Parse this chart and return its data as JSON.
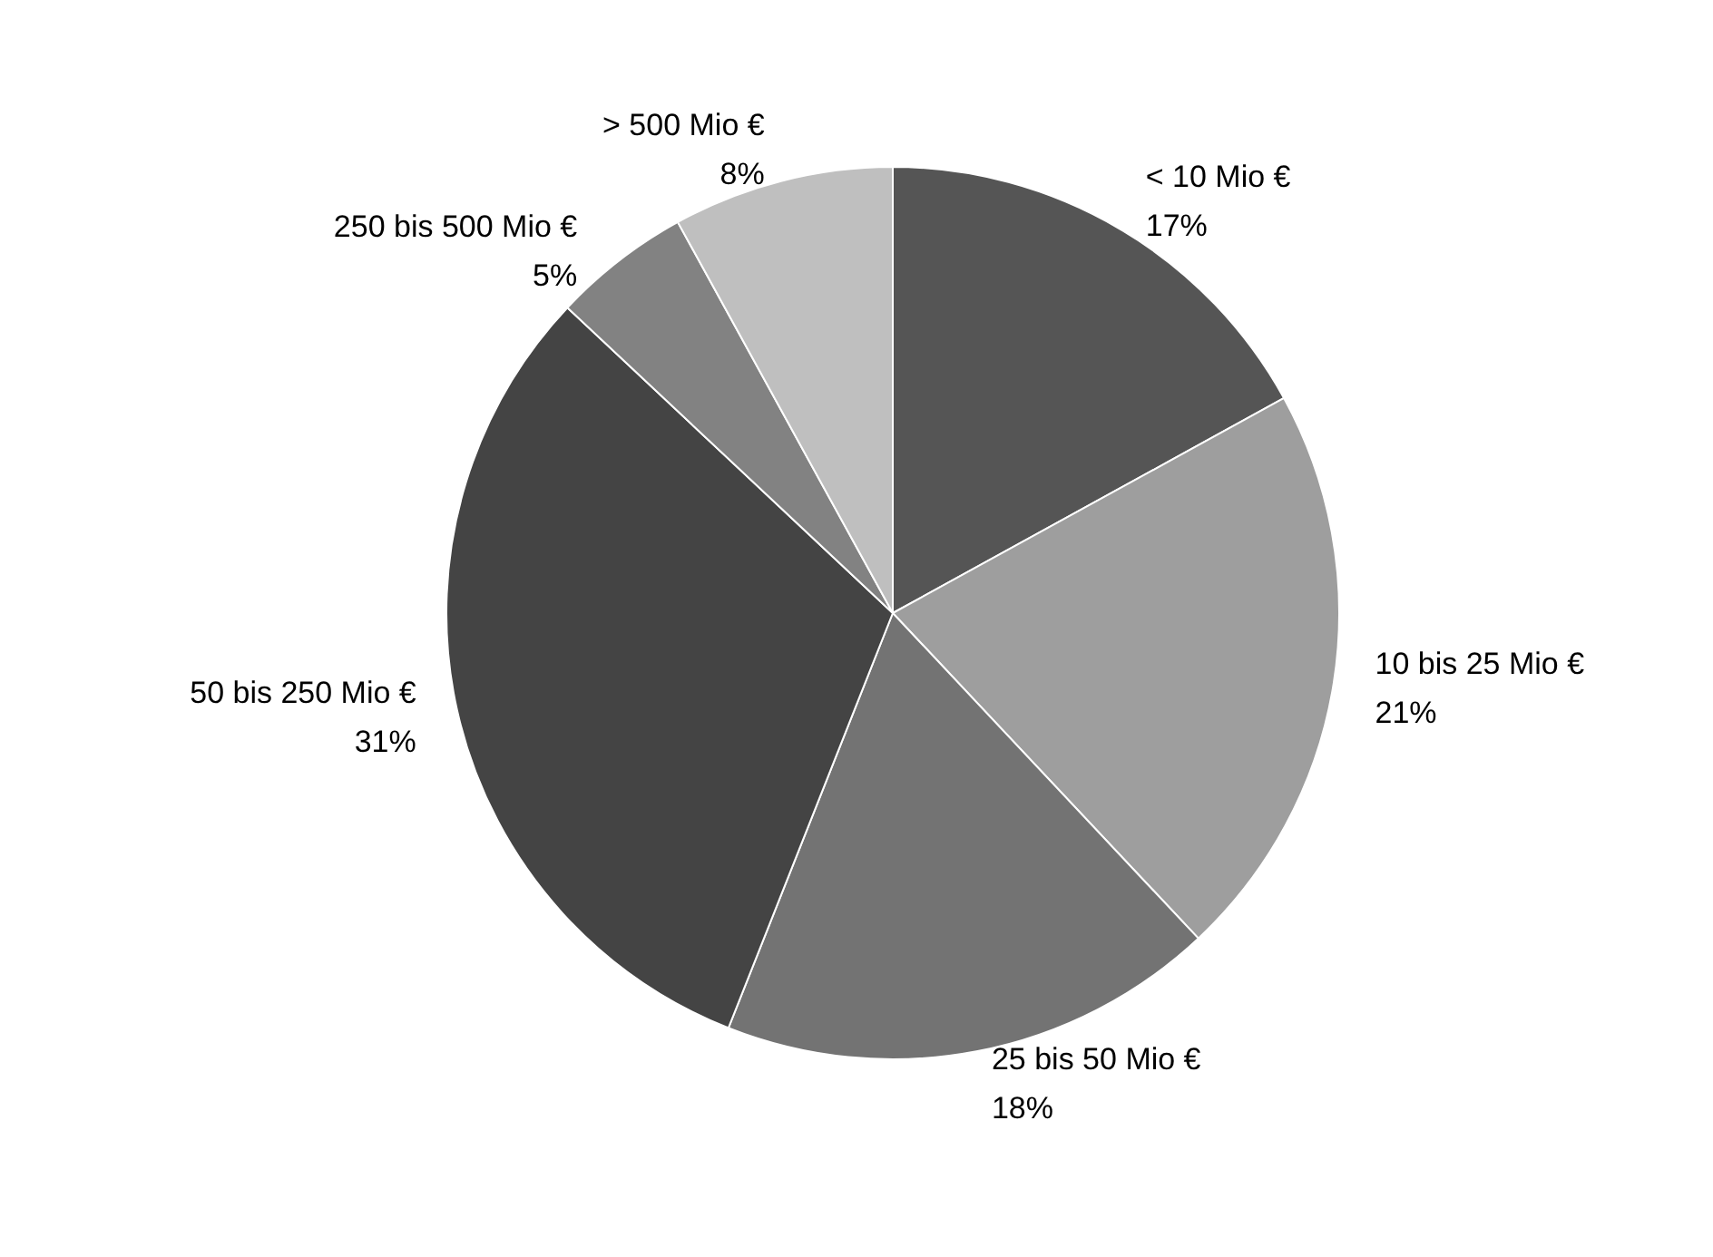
{
  "chart_data": {
    "type": "pie",
    "categories": [
      "< 10 Mio €",
      "10 bis 25 Mio €",
      "25 bis 50 Mio €",
      "50 bis 250 Mio €",
      "250 bis 500 Mio €",
      "> 500 Mio €"
    ],
    "values": [
      17,
      21,
      18,
      31,
      5,
      8
    ],
    "colors": [
      "#555555",
      "#9e9e9e",
      "#737373",
      "#444444",
      "#828282",
      "#bfbfbf"
    ],
    "value_labels": [
      "17%",
      "21%",
      "18%",
      "31%",
      "5%",
      "8%"
    ],
    "legend": false
  }
}
